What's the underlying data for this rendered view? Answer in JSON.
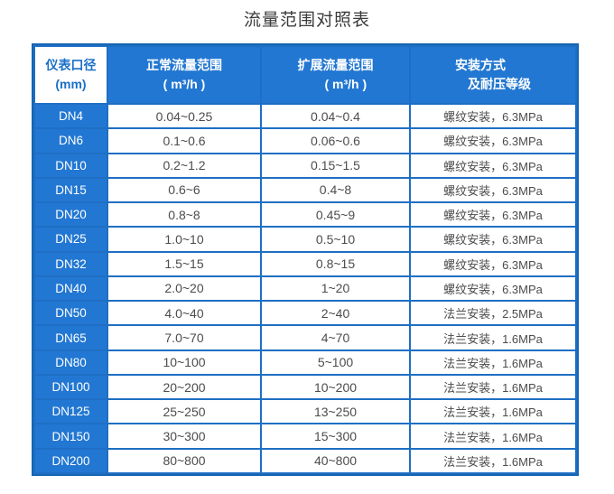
{
  "title": "流量范围对照表",
  "colors": {
    "cell_blue": "#2277d2",
    "gap_blue": "#1e6fc4",
    "border_blue": "#1565b2",
    "accent_blue": "#1a70c8",
    "data_text": "#4c4c4c",
    "title_text": "#3b3b3b"
  },
  "table": {
    "headers": {
      "col1": {
        "line1": "仪表口径",
        "line2": "(mm)"
      },
      "col2": {
        "line1": "正常流量范围",
        "line2": "( m³/h )"
      },
      "col3": {
        "line1": "扩展流量范围",
        "line2": "( m³/h )"
      },
      "col4": {
        "line1": "安装方式",
        "line2": "及耐压等级"
      }
    },
    "rows": [
      {
        "dn": "DN4",
        "normal": "0.04~0.25",
        "extended": "0.04~0.4",
        "install": "螺纹安装，6.3MPa"
      },
      {
        "dn": "DN6",
        "normal": "0.1~0.6",
        "extended": "0.06~0.6",
        "install": "螺纹安装，6.3MPa"
      },
      {
        "dn": "DN10",
        "normal": "0.2~1.2",
        "extended": "0.15~1.5",
        "install": "螺纹安装，6.3MPa"
      },
      {
        "dn": "DN15",
        "normal": "0.6~6",
        "extended": "0.4~8",
        "install": "螺纹安装，6.3MPa"
      },
      {
        "dn": "DN20",
        "normal": "0.8~8",
        "extended": "0.45~9",
        "install": "螺纹安装，6.3MPa"
      },
      {
        "dn": "DN25",
        "normal": "1.0~10",
        "extended": "0.5~10",
        "install": "螺纹安装，6.3MPa"
      },
      {
        "dn": "DN32",
        "normal": "1.5~15",
        "extended": "0.8~15",
        "install": "螺纹安装，6.3MPa"
      },
      {
        "dn": "DN40",
        "normal": "2.0~20",
        "extended": "1~20",
        "install": "螺纹安装，6.3MPa"
      },
      {
        "dn": "DN50",
        "normal": "4.0~40",
        "extended": "2~40",
        "install": "法兰安装，2.5MPa"
      },
      {
        "dn": "DN65",
        "normal": "7.0~70",
        "extended": "4~70",
        "install": "法兰安装，1.6MPa"
      },
      {
        "dn": "DN80",
        "normal": "10~100",
        "extended": "5~100",
        "install": "法兰安装，1.6MPa"
      },
      {
        "dn": "DN100",
        "normal": "20~200",
        "extended": "10~200",
        "install": "法兰安装，1.6MPa"
      },
      {
        "dn": "DN125",
        "normal": "25~250",
        "extended": "13~250",
        "install": "法兰安装，1.6MPa"
      },
      {
        "dn": "DN150",
        "normal": "30~300",
        "extended": "15~300",
        "install": "法兰安装，1.6MPa"
      },
      {
        "dn": "DN200",
        "normal": "80~800",
        "extended": "40~800",
        "install": "法兰安装，1.6MPa"
      }
    ]
  }
}
